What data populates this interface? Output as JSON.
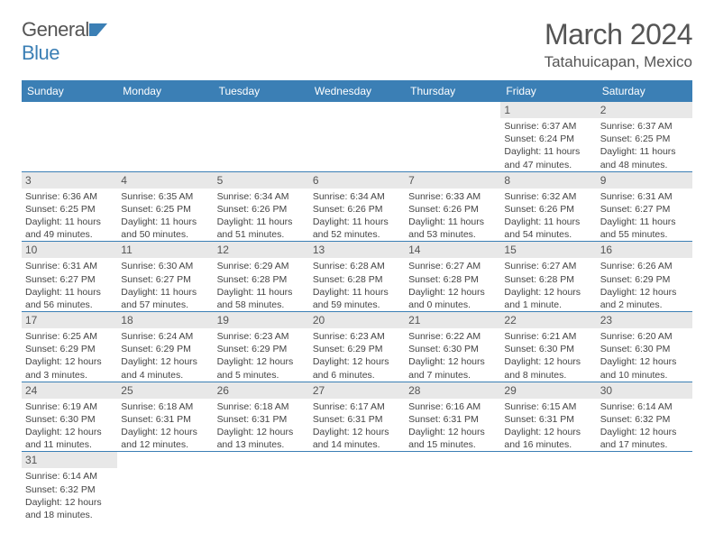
{
  "logo": {
    "text1": "General",
    "text2": "Blue"
  },
  "title": "March 2024",
  "location": "Tatahuicapan, Mexico",
  "colors": {
    "header_bg": "#3b7fb5",
    "header_fg": "#ffffff",
    "daynum_bg": "#e8e8e8",
    "row_border": "#3b7fb5",
    "text": "#444444"
  },
  "typography": {
    "title_fontsize": 32,
    "location_fontsize": 17,
    "weekday_fontsize": 12,
    "daynum_fontsize": 12,
    "info_fontsize": 10.5
  },
  "weekdays": [
    "Sunday",
    "Monday",
    "Tuesday",
    "Wednesday",
    "Thursday",
    "Friday",
    "Saturday"
  ],
  "weeks": [
    [
      null,
      null,
      null,
      null,
      null,
      {
        "d": "1",
        "sr": "Sunrise: 6:37 AM",
        "ss": "Sunset: 6:24 PM",
        "dl": "Daylight: 11 hours and 47 minutes."
      },
      {
        "d": "2",
        "sr": "Sunrise: 6:37 AM",
        "ss": "Sunset: 6:25 PM",
        "dl": "Daylight: 11 hours and 48 minutes."
      }
    ],
    [
      {
        "d": "3",
        "sr": "Sunrise: 6:36 AM",
        "ss": "Sunset: 6:25 PM",
        "dl": "Daylight: 11 hours and 49 minutes."
      },
      {
        "d": "4",
        "sr": "Sunrise: 6:35 AM",
        "ss": "Sunset: 6:25 PM",
        "dl": "Daylight: 11 hours and 50 minutes."
      },
      {
        "d": "5",
        "sr": "Sunrise: 6:34 AM",
        "ss": "Sunset: 6:26 PM",
        "dl": "Daylight: 11 hours and 51 minutes."
      },
      {
        "d": "6",
        "sr": "Sunrise: 6:34 AM",
        "ss": "Sunset: 6:26 PM",
        "dl": "Daylight: 11 hours and 52 minutes."
      },
      {
        "d": "7",
        "sr": "Sunrise: 6:33 AM",
        "ss": "Sunset: 6:26 PM",
        "dl": "Daylight: 11 hours and 53 minutes."
      },
      {
        "d": "8",
        "sr": "Sunrise: 6:32 AM",
        "ss": "Sunset: 6:26 PM",
        "dl": "Daylight: 11 hours and 54 minutes."
      },
      {
        "d": "9",
        "sr": "Sunrise: 6:31 AM",
        "ss": "Sunset: 6:27 PM",
        "dl": "Daylight: 11 hours and 55 minutes."
      }
    ],
    [
      {
        "d": "10",
        "sr": "Sunrise: 6:31 AM",
        "ss": "Sunset: 6:27 PM",
        "dl": "Daylight: 11 hours and 56 minutes."
      },
      {
        "d": "11",
        "sr": "Sunrise: 6:30 AM",
        "ss": "Sunset: 6:27 PM",
        "dl": "Daylight: 11 hours and 57 minutes."
      },
      {
        "d": "12",
        "sr": "Sunrise: 6:29 AM",
        "ss": "Sunset: 6:28 PM",
        "dl": "Daylight: 11 hours and 58 minutes."
      },
      {
        "d": "13",
        "sr": "Sunrise: 6:28 AM",
        "ss": "Sunset: 6:28 PM",
        "dl": "Daylight: 11 hours and 59 minutes."
      },
      {
        "d": "14",
        "sr": "Sunrise: 6:27 AM",
        "ss": "Sunset: 6:28 PM",
        "dl": "Daylight: 12 hours and 0 minutes."
      },
      {
        "d": "15",
        "sr": "Sunrise: 6:27 AM",
        "ss": "Sunset: 6:28 PM",
        "dl": "Daylight: 12 hours and 1 minute."
      },
      {
        "d": "16",
        "sr": "Sunrise: 6:26 AM",
        "ss": "Sunset: 6:29 PM",
        "dl": "Daylight: 12 hours and 2 minutes."
      }
    ],
    [
      {
        "d": "17",
        "sr": "Sunrise: 6:25 AM",
        "ss": "Sunset: 6:29 PM",
        "dl": "Daylight: 12 hours and 3 minutes."
      },
      {
        "d": "18",
        "sr": "Sunrise: 6:24 AM",
        "ss": "Sunset: 6:29 PM",
        "dl": "Daylight: 12 hours and 4 minutes."
      },
      {
        "d": "19",
        "sr": "Sunrise: 6:23 AM",
        "ss": "Sunset: 6:29 PM",
        "dl": "Daylight: 12 hours and 5 minutes."
      },
      {
        "d": "20",
        "sr": "Sunrise: 6:23 AM",
        "ss": "Sunset: 6:29 PM",
        "dl": "Daylight: 12 hours and 6 minutes."
      },
      {
        "d": "21",
        "sr": "Sunrise: 6:22 AM",
        "ss": "Sunset: 6:30 PM",
        "dl": "Daylight: 12 hours and 7 minutes."
      },
      {
        "d": "22",
        "sr": "Sunrise: 6:21 AM",
        "ss": "Sunset: 6:30 PM",
        "dl": "Daylight: 12 hours and 8 minutes."
      },
      {
        "d": "23",
        "sr": "Sunrise: 6:20 AM",
        "ss": "Sunset: 6:30 PM",
        "dl": "Daylight: 12 hours and 10 minutes."
      }
    ],
    [
      {
        "d": "24",
        "sr": "Sunrise: 6:19 AM",
        "ss": "Sunset: 6:30 PM",
        "dl": "Daylight: 12 hours and 11 minutes."
      },
      {
        "d": "25",
        "sr": "Sunrise: 6:18 AM",
        "ss": "Sunset: 6:31 PM",
        "dl": "Daylight: 12 hours and 12 minutes."
      },
      {
        "d": "26",
        "sr": "Sunrise: 6:18 AM",
        "ss": "Sunset: 6:31 PM",
        "dl": "Daylight: 12 hours and 13 minutes."
      },
      {
        "d": "27",
        "sr": "Sunrise: 6:17 AM",
        "ss": "Sunset: 6:31 PM",
        "dl": "Daylight: 12 hours and 14 minutes."
      },
      {
        "d": "28",
        "sr": "Sunrise: 6:16 AM",
        "ss": "Sunset: 6:31 PM",
        "dl": "Daylight: 12 hours and 15 minutes."
      },
      {
        "d": "29",
        "sr": "Sunrise: 6:15 AM",
        "ss": "Sunset: 6:31 PM",
        "dl": "Daylight: 12 hours and 16 minutes."
      },
      {
        "d": "30",
        "sr": "Sunrise: 6:14 AM",
        "ss": "Sunset: 6:32 PM",
        "dl": "Daylight: 12 hours and 17 minutes."
      }
    ],
    [
      {
        "d": "31",
        "sr": "Sunrise: 6:14 AM",
        "ss": "Sunset: 6:32 PM",
        "dl": "Daylight: 12 hours and 18 minutes."
      },
      null,
      null,
      null,
      null,
      null,
      null
    ]
  ]
}
